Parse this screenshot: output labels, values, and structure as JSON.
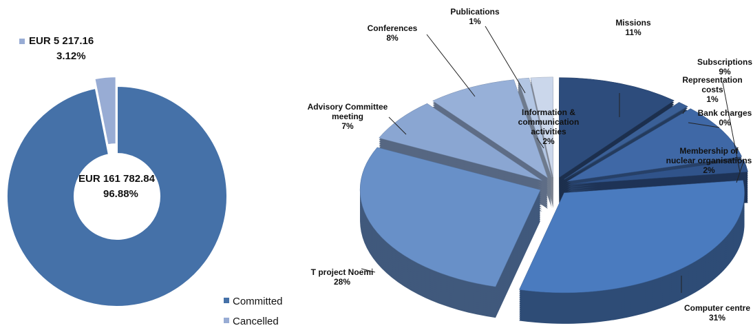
{
  "chart_data": [
    {
      "type": "donut",
      "categories": [
        "Committed",
        "Cancelled"
      ],
      "values": [
        161782.84,
        5217.16
      ],
      "value_labels": [
        "EUR 161 782.84",
        "EUR 5 217.16"
      ],
      "percent_labels": [
        "96.88%",
        "3.12%"
      ],
      "colors": [
        "#4571a8",
        "#98acd4"
      ],
      "legend": "bottom-right"
    },
    {
      "type": "pie3d",
      "categories": [
        "Missions",
        "Representation costs",
        "Bank charges",
        "Subscriptions",
        "Membership of nuclear organisations",
        "Computer centre",
        "T project Noemi",
        "Advisory Committee meeting",
        "Conferences",
        "Publications",
        "Information & communication activities"
      ],
      "values": [
        11,
        1,
        0,
        9,
        2,
        31,
        28,
        7,
        8,
        1,
        2
      ],
      "value_labels": [
        "11%",
        "1%",
        "0%",
        "9%",
        "2%",
        "31%",
        "28%",
        "7%",
        "8%",
        "1%",
        "2%"
      ],
      "colors": [
        "#2d4c7c",
        "#3a5f96",
        "#3a5f96",
        "#3f68a6",
        "#30538a",
        "#4a7bbf",
        "#6890c8",
        "#8aa6d2",
        "#97b0d8",
        "#b3c6e3",
        "#cbd7eb"
      ]
    }
  ]
}
